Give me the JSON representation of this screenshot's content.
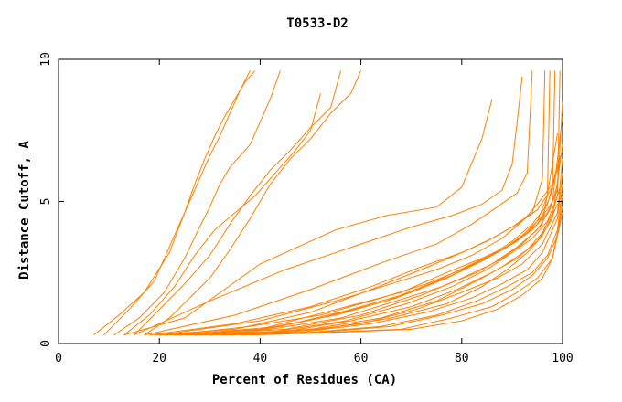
{
  "chart_data": {
    "type": "line",
    "title": "T0533-D2",
    "xlabel": "Percent of Residues (CA)",
    "ylabel": "Distance Cutoff, A",
    "xlim": [
      0,
      100
    ],
    "ylim": [
      0,
      10
    ],
    "xticks": [
      "0",
      "20",
      "40",
      "60",
      "80",
      "100"
    ],
    "yticks": [
      "0",
      "5",
      "10"
    ],
    "grid": false,
    "line_color": "#ff8000",
    "series": [
      {
        "x": [
          7,
          12,
          17,
          22,
          25,
          27,
          29,
          31,
          33,
          35,
          37,
          39
        ],
        "y": [
          0.3,
          1,
          1.8,
          3.2,
          4.6,
          5.6,
          6.5,
          7.3,
          8,
          8.6,
          9.2,
          9.6
        ]
      },
      {
        "x": [
          9,
          14,
          19,
          23,
          26,
          28,
          30,
          32,
          34,
          36,
          38
        ],
        "y": [
          0.3,
          1.2,
          2.2,
          3.8,
          5,
          5.8,
          6.6,
          7.3,
          8.1,
          8.9,
          9.6
        ]
      },
      {
        "x": [
          11,
          16,
          21,
          25,
          28,
          30,
          32,
          34,
          36,
          38,
          40,
          42,
          44
        ],
        "y": [
          0.3,
          0.9,
          1.8,
          3,
          4.1,
          4.8,
          5.6,
          6.2,
          6.6,
          7,
          7.8,
          8.6,
          9.6
        ]
      },
      {
        "x": [
          13,
          18,
          23,
          27,
          31,
          35,
          39,
          43,
          47,
          50,
          52
        ],
        "y": [
          0.3,
          1,
          2,
          3.1,
          4,
          4.6,
          5.2,
          6,
          6.8,
          7.5,
          8.8
        ]
      },
      {
        "x": [
          15,
          20,
          25,
          30,
          34,
          38,
          42,
          46,
          50,
          54,
          56
        ],
        "y": [
          0.3,
          1.2,
          2.1,
          3.1,
          4.2,
          5.2,
          6.1,
          6.8,
          7.6,
          8.3,
          9.6
        ]
      },
      {
        "x": [
          17,
          22,
          26,
          30,
          34,
          38,
          42,
          46,
          50,
          54,
          58,
          60
        ],
        "y": [
          0.3,
          0.9,
          1.6,
          2.3,
          3.3,
          4.4,
          5.6,
          6.5,
          7.2,
          8.1,
          8.8,
          9.6
        ]
      },
      {
        "x": [
          13,
          25,
          40,
          55,
          65,
          75,
          80,
          84,
          86
        ],
        "y": [
          0.3,
          0.9,
          2.8,
          4,
          4.5,
          4.8,
          5.5,
          7.2,
          8.6
        ]
      },
      {
        "x": [
          15,
          30,
          45,
          60,
          70,
          78,
          84,
          88,
          90,
          91,
          92
        ],
        "y": [
          0.3,
          1.5,
          2.6,
          3.5,
          4.1,
          4.5,
          4.9,
          5.4,
          6.3,
          7.8,
          9.4
        ]
      },
      {
        "x": [
          17,
          35,
          50,
          65,
          75,
          82,
          87,
          91,
          93,
          94
        ],
        "y": [
          0.3,
          1,
          1.9,
          2.9,
          3.5,
          4.2,
          4.8,
          5.3,
          6,
          9.6
        ]
      },
      {
        "x": [
          19,
          35,
          50,
          62,
          72,
          80,
          85,
          90,
          94,
          96,
          96.5
        ],
        "y": [
          0.3,
          0.5,
          1.1,
          1.9,
          2.6,
          3.2,
          3.6,
          4.1,
          4.6,
          5.8,
          9.6
        ]
      },
      {
        "x": [
          21,
          38,
          52,
          65,
          75,
          82,
          88,
          92,
          95,
          97,
          97.5
        ],
        "y": [
          0.3,
          0.4,
          0.9,
          1.5,
          2.2,
          2.8,
          3.3,
          3.8,
          4.3,
          5.2,
          9.6
        ]
      },
      {
        "x": [
          23,
          40,
          55,
          67,
          77,
          84,
          89,
          93,
          96,
          98,
          98.5
        ],
        "y": [
          0.3,
          0.5,
          1,
          1.6,
          2.3,
          2.9,
          3.4,
          3.9,
          4.5,
          5.4,
          9.6
        ]
      },
      {
        "x": [
          25,
          42,
          57,
          69,
          78,
          85,
          90,
          94,
          97,
          99,
          99.5
        ],
        "y": [
          0.3,
          0.4,
          0.8,
          1.4,
          2,
          2.6,
          3.2,
          3.7,
          4.3,
          5.2,
          9.6
        ]
      },
      {
        "x": [
          20,
          40,
          55,
          68,
          77,
          84,
          90,
          94,
          97,
          99,
          100
        ],
        "y": [
          0.3,
          0.5,
          1.2,
          1.8,
          2.5,
          3,
          3.5,
          4,
          4.6,
          5.4,
          8.5
        ]
      },
      {
        "x": [
          22,
          38,
          52,
          64,
          73,
          80,
          86,
          91,
          95,
          98,
          100
        ],
        "y": [
          0.3,
          0.6,
          1,
          1.6,
          2.1,
          2.6,
          3.1,
          3.6,
          4.2,
          5,
          8
        ]
      },
      {
        "x": [
          24,
          42,
          56,
          67,
          76,
          83,
          88,
          92,
          96,
          99
        ],
        "y": [
          0.3,
          0.5,
          0.9,
          1.5,
          2,
          2.5,
          3,
          3.5,
          4.2,
          7.4
        ]
      },
      {
        "x": [
          26,
          44,
          58,
          70,
          79,
          86,
          91,
          95,
          98,
          100
        ],
        "y": [
          0.3,
          0.4,
          0.8,
          1.3,
          1.9,
          2.5,
          3,
          3.6,
          4.4,
          7
        ]
      },
      {
        "x": [
          28,
          46,
          60,
          71,
          80,
          87,
          92,
          96,
          99,
          100
        ],
        "y": [
          0.3,
          0.4,
          0.7,
          1.2,
          1.8,
          2.3,
          2.8,
          3.5,
          4.6,
          6.5
        ]
      },
      {
        "x": [
          30,
          48,
          62,
          73,
          82,
          88,
          93,
          96,
          99,
          100
        ],
        "y": [
          0.3,
          0.4,
          0.7,
          1.1,
          1.6,
          2.1,
          2.6,
          3.2,
          4.4,
          6
        ]
      },
      {
        "x": [
          32,
          50,
          64,
          75,
          83,
          89,
          94,
          97,
          99,
          100
        ],
        "y": [
          0.3,
          0.4,
          0.6,
          1,
          1.5,
          2,
          2.5,
          3.1,
          4,
          5.6
        ]
      },
      {
        "x": [
          34,
          52,
          66,
          76,
          84,
          90,
          94,
          97,
          99,
          100
        ],
        "y": [
          0.3,
          0.4,
          0.6,
          1,
          1.4,
          1.9,
          2.4,
          3,
          3.8,
          5.2
        ]
      },
      {
        "x": [
          36,
          54,
          68,
          78,
          86,
          91,
          95,
          98,
          100
        ],
        "y": [
          0.3,
          0.4,
          0.5,
          0.9,
          1.3,
          1.8,
          2.3,
          3,
          4.8
        ]
      },
      {
        "x": [
          38,
          56,
          70,
          80,
          87,
          92,
          96,
          98,
          100
        ],
        "y": [
          0.3,
          0.4,
          0.5,
          0.8,
          1.2,
          1.7,
          2.3,
          3,
          4.6
        ]
      },
      {
        "x": [
          18,
          35,
          50,
          62,
          72,
          80,
          86,
          91,
          95,
          98,
          100
        ],
        "y": [
          0.3,
          0.7,
          1.3,
          2,
          2.7,
          3.2,
          3.7,
          4.2,
          4.7,
          5.5,
          6.8
        ]
      },
      {
        "x": [
          20,
          40,
          55,
          66,
          75,
          82,
          88,
          92,
          95,
          98,
          99.5
        ],
        "y": [
          0.3,
          0.8,
          1.5,
          2.1,
          2.6,
          3.1,
          3.7,
          4.3,
          4.9,
          5.6,
          6.6
        ]
      },
      {
        "x": [
          24,
          44,
          58,
          70,
          78,
          85,
          90,
          94,
          97,
          99
        ],
        "y": [
          0.3,
          0.6,
          1.2,
          1.8,
          2.4,
          3,
          3.6,
          4.2,
          4.9,
          6.2
        ]
      },
      {
        "x": [
          27,
          45,
          60,
          72,
          80,
          86,
          91,
          95,
          97.5,
          99
        ],
        "y": [
          0.3,
          0.5,
          1,
          1.7,
          2.3,
          2.8,
          3.4,
          4,
          4.7,
          5.6
        ]
      },
      {
        "x": [
          30,
          50,
          64,
          75,
          83,
          88,
          93,
          96,
          98,
          99.5
        ],
        "y": [
          0.3,
          0.5,
          0.9,
          1.5,
          2.2,
          2.7,
          3.3,
          3.9,
          4.6,
          5.5
        ]
      },
      {
        "x": [
          33,
          52,
          66,
          77,
          84,
          89,
          93,
          96,
          98,
          100
        ],
        "y": [
          0.3,
          0.5,
          0.9,
          1.4,
          2,
          2.6,
          3.2,
          3.8,
          4.5,
          5.3
        ]
      }
    ]
  }
}
